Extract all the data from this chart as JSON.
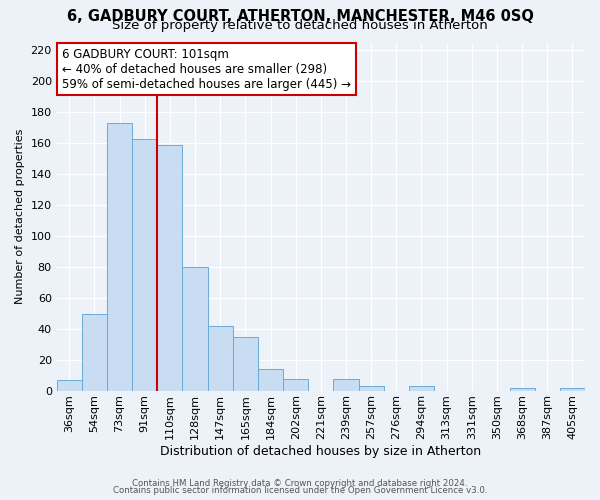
{
  "title1": "6, GADBURY COURT, ATHERTON, MANCHESTER, M46 0SQ",
  "title2": "Size of property relative to detached houses in Atherton",
  "xlabel": "Distribution of detached houses by size in Atherton",
  "ylabel": "Number of detached properties",
  "bar_labels": [
    "36sqm",
    "54sqm",
    "73sqm",
    "91sqm",
    "110sqm",
    "128sqm",
    "147sqm",
    "165sqm",
    "184sqm",
    "202sqm",
    "221sqm",
    "239sqm",
    "257sqm",
    "276sqm",
    "294sqm",
    "313sqm",
    "331sqm",
    "350sqm",
    "368sqm",
    "387sqm",
    "405sqm"
  ],
  "bar_values": [
    7,
    50,
    173,
    163,
    159,
    80,
    42,
    35,
    14,
    8,
    0,
    8,
    3,
    0,
    3,
    0,
    0,
    0,
    2,
    0,
    2
  ],
  "bar_color": "#c9ddf2",
  "bar_edge_color": "#6aabd6",
  "vline_color": "#cc0000",
  "vline_x_index": 3,
  "annotation_title": "6 GADBURY COURT: 101sqm",
  "annotation_line1": "← 40% of detached houses are smaller (298)",
  "annotation_line2": "59% of semi-detached houses are larger (445) →",
  "annotation_box_facecolor": "#ffffff",
  "annotation_box_edgecolor": "#cc0000",
  "ylim": [
    0,
    225
  ],
  "yticks": [
    0,
    20,
    40,
    60,
    80,
    100,
    120,
    140,
    160,
    180,
    200,
    220
  ],
  "footnote1": "Contains HM Land Registry data © Crown copyright and database right 2024.",
  "footnote2": "Contains public sector information licensed under the Open Government Licence v3.0.",
  "bg_color": "#edf1f8",
  "grid_color": "#ffffff",
  "title1_fontsize": 10.5,
  "title2_fontsize": 9.5,
  "xlabel_fontsize": 9,
  "ylabel_fontsize": 8,
  "tick_fontsize": 8,
  "annotation_fontsize": 8.5,
  "footnote_fontsize": 6.2
}
